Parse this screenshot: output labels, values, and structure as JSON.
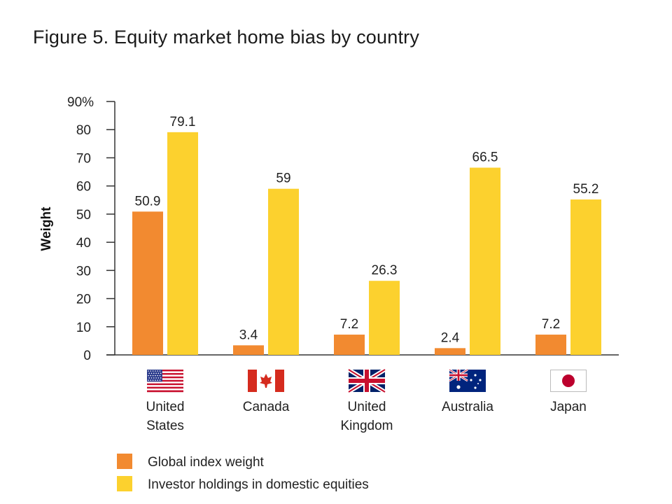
{
  "chart_data": {
    "type": "bar",
    "title": "Figure 5. Equity market home bias by country",
    "xlabel": "",
    "ylabel": "Weight",
    "ylim": [
      0,
      90
    ],
    "yticks": [
      0,
      10,
      20,
      30,
      40,
      50,
      60,
      70,
      80,
      90
    ],
    "ytick_labels": [
      "0",
      "10",
      "20",
      "30",
      "40",
      "50",
      "60",
      "70",
      "80",
      "90%"
    ],
    "categories": [
      {
        "name": "United States",
        "lines": [
          "United",
          "States"
        ],
        "flag": "us-flag-icon"
      },
      {
        "name": "Canada",
        "lines": [
          "Canada"
        ],
        "flag": "canada-flag-icon"
      },
      {
        "name": "United Kingdom",
        "lines": [
          "United",
          "Kingdom"
        ],
        "flag": "uk-flag-icon"
      },
      {
        "name": "Australia",
        "lines": [
          "Australia"
        ],
        "flag": "australia-flag-icon"
      },
      {
        "name": "Japan",
        "lines": [
          "Japan"
        ],
        "flag": "japan-flag-icon"
      }
    ],
    "series": [
      {
        "name": "Global index weight",
        "color": "#F28A30",
        "values": [
          50.9,
          3.4,
          7.2,
          2.4,
          7.2
        ],
        "labels": [
          "50.9",
          "3.4",
          "7.2",
          "2.4",
          "7.2"
        ]
      },
      {
        "name": "Investor holdings in domestic equities",
        "color": "#FCD12E",
        "values": [
          79.1,
          59,
          26.3,
          66.5,
          55.2
        ],
        "labels": [
          "79.1",
          "59",
          "26.3",
          "66.5",
          "55.2"
        ]
      }
    ],
    "legend_position": "bottom-left",
    "grid": false
  }
}
